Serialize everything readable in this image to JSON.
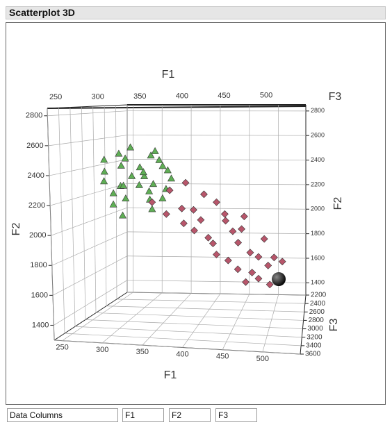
{
  "panel": {
    "title": "Scatterplot 3D"
  },
  "columns": {
    "label": "Data Columns",
    "fields": [
      "F1",
      "F2",
      "F3"
    ]
  },
  "chart_data": {
    "type": "scatter3d",
    "x_label": "F1",
    "y_label": "F2",
    "z_label": "F3",
    "xlim": [
      240,
      547
    ],
    "ylim": [
      1300,
      2850
    ],
    "zlim": [
      2200,
      3600
    ],
    "xticks": [
      250,
      300,
      350,
      400,
      450,
      500
    ],
    "yticks": [
      1400,
      1600,
      1800,
      2000,
      2200,
      2400,
      2600,
      2800
    ],
    "zticks": [
      2200,
      2400,
      2600,
      2800,
      3000,
      3200,
      3400,
      3600
    ],
    "grid": true,
    "series": [
      {
        "marker": "triangle",
        "color": "#5fae55",
        "x": [
          255,
          262,
          270,
          275,
          280,
          285,
          290,
          295,
          300,
          305,
          310,
          315,
          320,
          325,
          330,
          335,
          340,
          345,
          350,
          355,
          360,
          268,
          288,
          302,
          318,
          332,
          348,
          296,
          312,
          326
        ],
        "y": [
          2450,
          2300,
          2380,
          2250,
          2500,
          2150,
          2420,
          2330,
          2550,
          2200,
          2400,
          2280,
          2480,
          2350,
          2100,
          2450,
          2300,
          2180,
          2380,
          2260,
          2330,
          2200,
          2050,
          2480,
          2150,
          2520,
          2420,
          2280,
          2360,
          2230
        ],
        "z": [
          2800,
          2900,
          3000,
          2750,
          2850,
          3050,
          2950,
          2800,
          2900,
          3100,
          2850,
          2950,
          2750,
          3000,
          2900,
          2800,
          3050,
          2900,
          2850,
          3000,
          2950,
          2800,
          2900,
          3050,
          2750,
          2850,
          2950,
          3000,
          2800,
          2900
        ]
      },
      {
        "marker": "diamond",
        "color": "#b8566b",
        "x": [
          330,
          345,
          360,
          370,
          380,
          390,
          400,
          405,
          410,
          420,
          425,
          430,
          440,
          445,
          450,
          455,
          460,
          465,
          470,
          480,
          485,
          490,
          495,
          500,
          505,
          515,
          375,
          395,
          415,
          435,
          455,
          475
        ],
        "y": [
          2150,
          2050,
          2250,
          2100,
          2300,
          1950,
          2200,
          2050,
          1900,
          2150,
          1800,
          2000,
          1750,
          1950,
          1850,
          1700,
          2050,
          1600,
          1800,
          1750,
          1650,
          1900,
          1700,
          1600,
          1780,
          1720,
          2000,
          2120,
          1850,
          2080,
          1950,
          1680
        ],
        "z": [
          2900,
          2800,
          3000,
          2850,
          2950,
          2900,
          2800,
          3050,
          2900,
          2850,
          3000,
          2750,
          2950,
          2900,
          2800,
          3000,
          2850,
          2950,
          2900,
          2800,
          3050,
          2900,
          2850,
          3000,
          2950,
          2800,
          2900,
          3050,
          2850,
          2950,
          2800,
          3000
        ]
      }
    ]
  }
}
